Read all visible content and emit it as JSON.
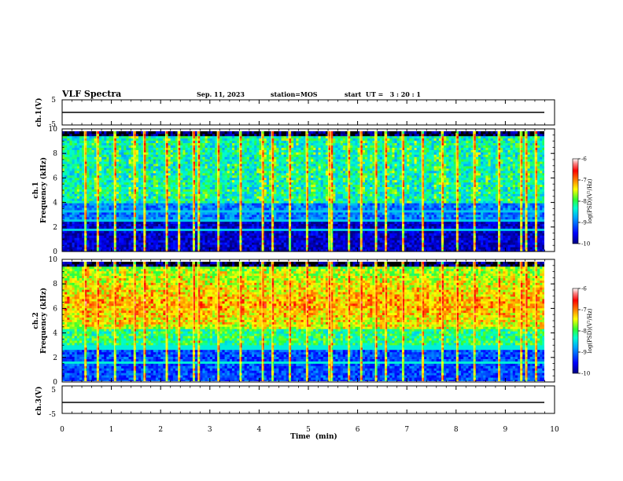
{
  "header": {
    "title": "VLF Spectra",
    "date": "Sep. 11, 2023",
    "station": "station=MOS",
    "start_time": "start  UT =   3 : 20 : 1"
  },
  "chart_data": [
    {
      "type": "line",
      "panel": "ch1-voltage",
      "ylabel": "ch.1(V)",
      "ylim": [
        -5,
        5
      ],
      "yticks": [
        5,
        -5
      ],
      "ytick_labels": [
        "5",
        "-5"
      ],
      "x": [
        0,
        9.8
      ],
      "values": [
        0,
        0
      ],
      "color": "#000000"
    },
    {
      "type": "heatmap",
      "panel": "ch1-spectrogram",
      "ylabel": "ch.1\nFrequency (kHz)",
      "ylim": [
        0,
        10
      ],
      "yticks": [
        0,
        2,
        4,
        6,
        8,
        10
      ],
      "ytick_labels": [
        "0",
        "2",
        "4",
        "6",
        "8",
        "10"
      ],
      "xlim": [
        0,
        9.8
      ],
      "colorbar": {
        "label": "log(PSD)(V²/Hz)",
        "range": [
          -10,
          -6
        ],
        "ticks": [
          -6,
          -7,
          -8,
          -9,
          -10
        ],
        "tick_labels": [
          "-6",
          "-7",
          "-8",
          "-9",
          "-10"
        ]
      }
    },
    {
      "type": "heatmap",
      "panel": "ch2-spectrogram",
      "ylabel": "ch.2\nFrequency (kHz)",
      "ylim": [
        0,
        10
      ],
      "yticks": [
        0,
        2,
        4,
        6,
        8,
        10
      ],
      "ytick_labels": [
        "0",
        "2",
        "4",
        "6",
        "8",
        "10"
      ],
      "xlim": [
        0,
        9.8
      ],
      "colorbar": {
        "label": "log(PSD)(V²/Hz)",
        "range": [
          -10,
          -6
        ],
        "ticks": [
          -6,
          -7,
          -8,
          -9,
          -10
        ],
        "tick_labels": [
          "-6",
          "-7",
          "-8",
          "-9",
          "-10"
        ]
      }
    },
    {
      "type": "line",
      "panel": "ch3-voltage",
      "ylabel": "ch.3(V)",
      "ylim": [
        -5,
        5
      ],
      "yticks": [
        5,
        -5
      ],
      "ytick_labels": [
        "5",
        "-5"
      ],
      "x": [
        0,
        9.8
      ],
      "values": [
        0,
        0
      ],
      "color": "#000000"
    }
  ],
  "x_axis": {
    "label": "Time  (min)",
    "range": [
      0,
      10
    ],
    "ticks": [
      0,
      1,
      2,
      3,
      4,
      5,
      6,
      7,
      8,
      9,
      10
    ],
    "tick_labels": [
      "0",
      "1",
      "2",
      "3",
      "4",
      "5",
      "6",
      "7",
      "8",
      "9",
      "10"
    ]
  },
  "colors": {
    "axis": "#000000",
    "background": "#ffffff"
  }
}
